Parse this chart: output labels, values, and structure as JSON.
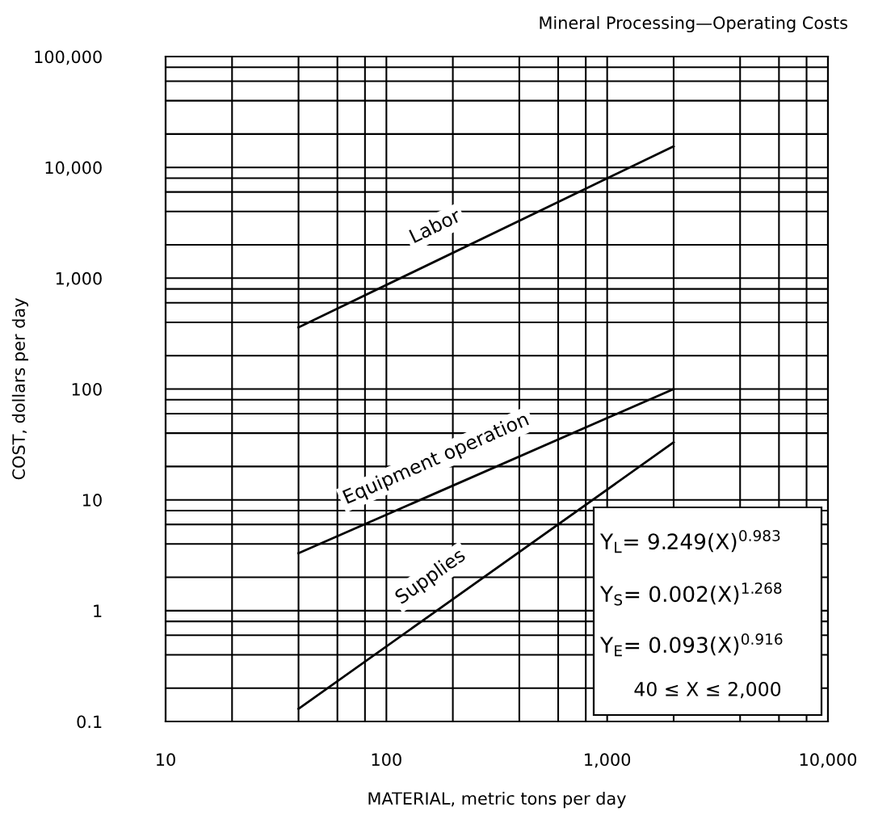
{
  "chart_data": {
    "type": "line",
    "title": "Mineral Processing—Operating Costs",
    "xlabel": "MATERIAL, metric tons per day",
    "ylabel": "COST, dollars per day",
    "log": "xy",
    "grid": true,
    "legend": false,
    "line_style": "solid",
    "xlim": [
      10,
      10000
    ],
    "ylim": [
      0.1,
      100000
    ],
    "xticks": [
      10,
      {
        "value": 20,
        "label": null
      },
      {
        "value": 40,
        "label": null
      },
      {
        "value": 60,
        "label": null
      },
      {
        "value": 80,
        "label": null
      },
      100,
      {
        "value": 200,
        "label": null
      },
      {
        "value": 400,
        "label": null
      },
      {
        "value": 600,
        "label": null
      },
      {
        "value": 800,
        "label": null
      },
      {
        "value": 1000,
        "label": "1,000"
      },
      {
        "value": 2000,
        "label": null
      },
      {
        "value": 4000,
        "label": null
      },
      {
        "value": 6000,
        "label": null
      },
      {
        "value": 8000,
        "label": null
      },
      {
        "value": 10000,
        "label": "10,000"
      }
    ],
    "yticks": [
      0.1,
      {
        "value": 0.2,
        "label": null
      },
      {
        "value": 0.4,
        "label": null
      },
      {
        "value": 0.6,
        "label": null
      },
      {
        "value": 0.8,
        "label": null
      },
      1,
      {
        "value": 2,
        "label": null
      },
      {
        "value": 4,
        "label": null
      },
      {
        "value": 6,
        "label": null
      },
      {
        "value": 8,
        "label": null
      },
      10,
      {
        "value": 20,
        "label": null
      },
      {
        "value": 40,
        "label": null
      },
      {
        "value": 60,
        "label": null
      },
      {
        "value": 80,
        "label": null
      },
      100,
      {
        "value": 200,
        "label": null
      },
      {
        "value": 400,
        "label": null
      },
      {
        "value": 600,
        "label": null
      },
      {
        "value": 800,
        "label": null
      },
      {
        "value": 1000,
        "label": "1,000"
      },
      {
        "value": 2000,
        "label": null
      },
      {
        "value": 4000,
        "label": null
      },
      {
        "value": 6000,
        "label": null
      },
      {
        "value": 8000,
        "label": null
      },
      {
        "value": 10000,
        "label": "10,000"
      },
      {
        "value": 20000,
        "label": null
      },
      {
        "value": 40000,
        "label": null
      },
      {
        "value": 60000,
        "label": null
      },
      {
        "value": 80000,
        "label": null
      },
      {
        "value": 100000,
        "label": "100,000"
      }
    ],
    "x": [
      40,
      2000
    ],
    "series": [
      {
        "name": "Labor",
        "color": "#000000",
        "values": [
          360,
          15500
        ]
      },
      {
        "name": "Equipment operation",
        "color": "#000000",
        "values": [
          3.3,
          100
        ]
      },
      {
        "name": "Supplies",
        "color": "#000000",
        "values": [
          0.13,
          33
        ]
      }
    ],
    "annotations": [
      "Y$_{L}$= 9.249(X)$^{0.983}$",
      "Y$_{S}$= 0.002(X)$^{1.268}$",
      "Y$_{E}$= 0.093(X)$^{0.916}$",
      "40 ≤ X ≤ 2,000"
    ]
  }
}
